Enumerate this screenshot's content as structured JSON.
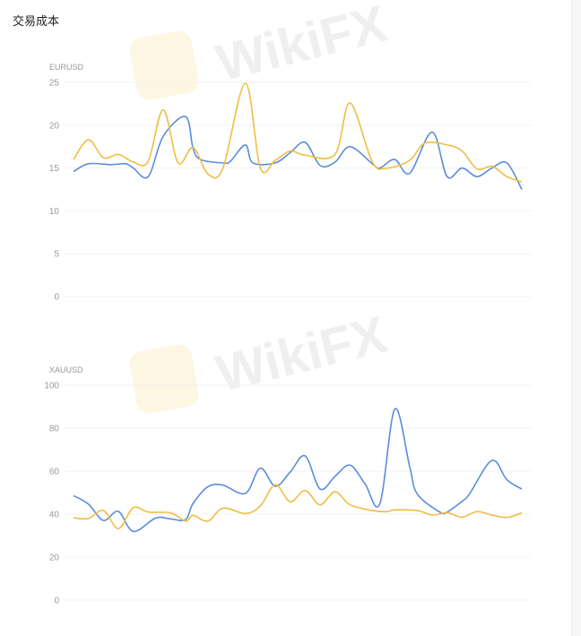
{
  "page": {
    "title": "交易成本",
    "watermark": "WikiFX"
  },
  "colors": {
    "series_a": "#5b8ddb",
    "series_b": "#f0bd45",
    "grid": "#f0f0f0",
    "tick": "#999999"
  },
  "chart_data": [
    {
      "type": "line",
      "title": "EURUSD",
      "ylim": [
        0,
        25
      ],
      "yticks": [
        "0",
        "5",
        "10",
        "15",
        "20",
        "25"
      ],
      "xlim": [
        0,
        60
      ],
      "grid": true,
      "smooth": true,
      "series": [
        {
          "color": "#5b8ddb",
          "points": [
            [
              0,
              14.6
            ],
            [
              2,
              15.5
            ],
            [
              5,
              15.4
            ],
            [
              7,
              15.5
            ],
            [
              8,
              15.0
            ],
            [
              10,
              14.0
            ],
            [
              12,
              18.7
            ],
            [
              15,
              21.0
            ],
            [
              16,
              17.3
            ],
            [
              17,
              16.0
            ],
            [
              20,
              15.6
            ],
            [
              21,
              15.8
            ],
            [
              23,
              17.7
            ],
            [
              24,
              15.6
            ],
            [
              27,
              15.6
            ],
            [
              29,
              16.8
            ],
            [
              31,
              18.0
            ],
            [
              33,
              15.3
            ],
            [
              35,
              15.7
            ],
            [
              37,
              17.5
            ],
            [
              40,
              15.5
            ],
            [
              41,
              15.0
            ],
            [
              43,
              16.0
            ],
            [
              45,
              14.4
            ],
            [
              48,
              19.2
            ],
            [
              50,
              14.0
            ],
            [
              52,
              15.0
            ],
            [
              54,
              14.0
            ],
            [
              56,
              15.0
            ],
            [
              58,
              15.6
            ],
            [
              60,
              12.5
            ]
          ]
        },
        {
          "color": "#f0bd45",
          "points": [
            [
              0,
              16.0
            ],
            [
              2,
              18.3
            ],
            [
              4,
              16.2
            ],
            [
              6,
              16.6
            ],
            [
              8,
              15.7
            ],
            [
              10,
              15.8
            ],
            [
              12,
              21.8
            ],
            [
              14,
              15.6
            ],
            [
              16,
              17.4
            ],
            [
              18,
              14.3
            ],
            [
              20,
              15.0
            ],
            [
              23,
              24.9
            ],
            [
              25,
              15.0
            ],
            [
              27,
              15.9
            ],
            [
              29,
              17.0
            ],
            [
              31,
              16.5
            ],
            [
              35,
              16.6
            ],
            [
              37,
              22.6
            ],
            [
              40,
              15.7
            ],
            [
              42,
              15.0
            ],
            [
              45,
              15.9
            ],
            [
              47,
              17.9
            ],
            [
              50,
              17.7
            ],
            [
              52,
              17.0
            ],
            [
              54,
              14.9
            ],
            [
              56,
              15.2
            ],
            [
              58,
              14.0
            ],
            [
              60,
              13.4
            ]
          ]
        }
      ]
    },
    {
      "type": "line",
      "title": "XAUUSD",
      "ylim": [
        0,
        100
      ],
      "yticks": [
        "0",
        "20",
        "40",
        "60",
        "80",
        "100"
      ],
      "xlim": [
        0,
        60
      ],
      "grid": true,
      "smooth": true,
      "series": [
        {
          "color": "#5b8ddb",
          "points": [
            [
              0,
              48.6
            ],
            [
              2,
              44.7
            ],
            [
              4,
              37.1
            ],
            [
              6,
              41.3
            ],
            [
              8,
              32.0
            ],
            [
              11,
              38.2
            ],
            [
              13,
              37.8
            ],
            [
              15,
              37.5
            ],
            [
              16,
              45.0
            ],
            [
              18,
              52.8
            ],
            [
              20,
              53.5
            ],
            [
              23,
              49.7
            ],
            [
              25,
              61.4
            ],
            [
              27,
              53.0
            ],
            [
              29,
              59.6
            ],
            [
              31,
              67.1
            ],
            [
              33,
              51.7
            ],
            [
              35,
              57.6
            ],
            [
              37,
              62.8
            ],
            [
              39,
              54.2
            ],
            [
              41,
              44.9
            ],
            [
              43,
              88.9
            ],
            [
              45,
              62.0
            ],
            [
              46,
              49.4
            ],
            [
              49,
              41.0
            ],
            [
              50,
              41.0
            ],
            [
              52,
              46.0
            ],
            [
              53,
              49.4
            ],
            [
              56,
              65.0
            ],
            [
              58,
              56.0
            ],
            [
              60,
              51.7
            ]
          ]
        },
        {
          "color": "#f0bd45",
          "points": [
            [
              0,
              38.3
            ],
            [
              2,
              38.0
            ],
            [
              4,
              41.7
            ],
            [
              6,
              33.3
            ],
            [
              8,
              43.0
            ],
            [
              10,
              41.0
            ],
            [
              13,
              40.6
            ],
            [
              15,
              36.8
            ],
            [
              16,
              39.4
            ],
            [
              18,
              36.8
            ],
            [
              20,
              42.8
            ],
            [
              23,
              40.3
            ],
            [
              25,
              43.8
            ],
            [
              27,
              53.7
            ],
            [
              29,
              45.8
            ],
            [
              31,
              51.0
            ],
            [
              33,
              44.4
            ],
            [
              35,
              50.4
            ],
            [
              37,
              44.4
            ],
            [
              40,
              41.7
            ],
            [
              42,
              41.2
            ],
            [
              43,
              42.0
            ],
            [
              46,
              41.7
            ],
            [
              48,
              39.6
            ],
            [
              50,
              40.7
            ],
            [
              52,
              38.6
            ],
            [
              54,
              41.2
            ],
            [
              56,
              39.6
            ],
            [
              58,
              38.5
            ],
            [
              60,
              40.6
            ]
          ]
        }
      ]
    }
  ]
}
